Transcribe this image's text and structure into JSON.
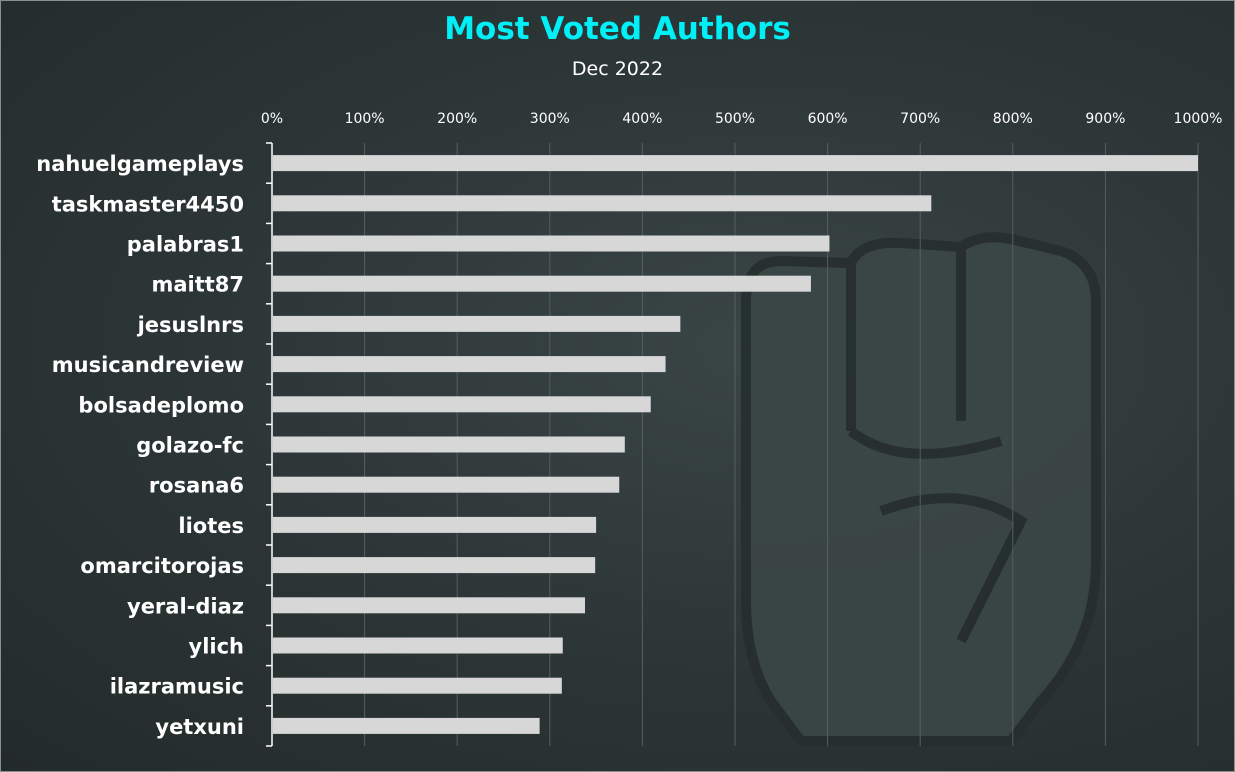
{
  "chart_data": {
    "type": "bar",
    "orientation": "horizontal",
    "title": "Most Voted Authors",
    "subtitle": "Dec 2022",
    "xlabel": "",
    "ylabel": "",
    "xlim": [
      0,
      1000
    ],
    "x_ticks": [
      "0%",
      "100%",
      "200%",
      "300%",
      "400%",
      "500%",
      "600%",
      "700%",
      "800%",
      "900%",
      "1000%"
    ],
    "x_axis_position": "top",
    "grid": true,
    "categories": [
      "nahuelgameplays",
      "taskmaster4450",
      "palabras1",
      "maitt87",
      "jesuslnrs",
      "musicandreview",
      "bolsadeplomo",
      "golazo-fc",
      "rosana6",
      "liotes",
      "omarcitorojas",
      "yeral-diaz",
      "ylich",
      "ilazramusic",
      "yetxuni"
    ],
    "values": [
      1000,
      712,
      602,
      582,
      441,
      425,
      409,
      381,
      375,
      350,
      349,
      338,
      314,
      313,
      289
    ],
    "bar_color": "#d7d7d7",
    "title_color": "#00f0f8",
    "background_color": "#2c3535",
    "watermark_icon": "raised-fist-icon"
  }
}
